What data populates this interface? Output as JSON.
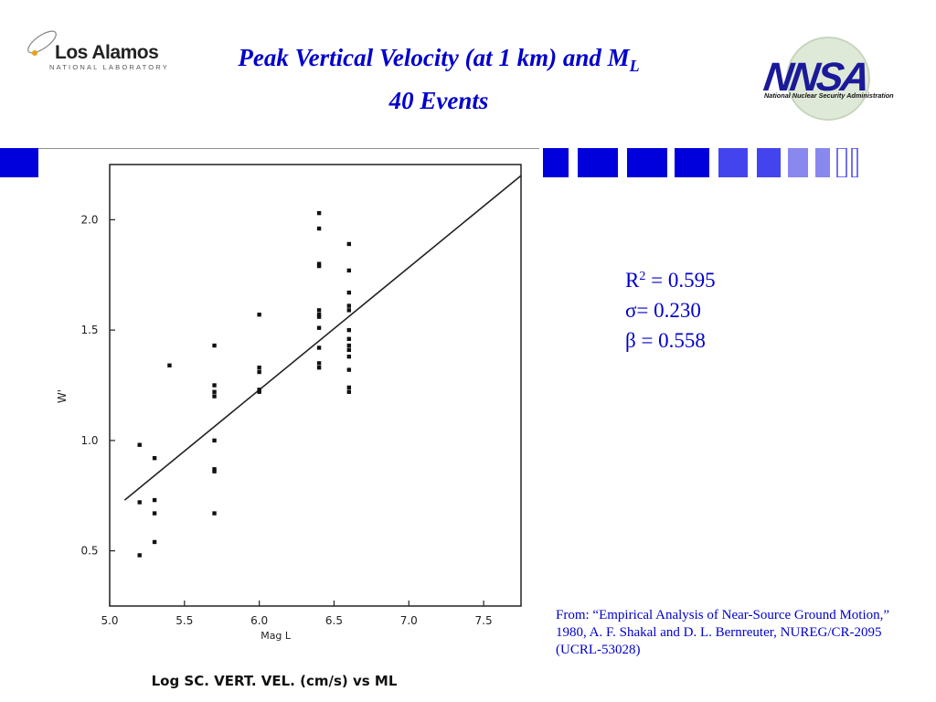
{
  "slide": {
    "title_main": "Peak Vertical Velocity (at 1 km) and M",
    "title_sub": "L",
    "title_line2": "40 Events"
  },
  "logos": {
    "lanl_name": "Los Alamos",
    "lanl_sub": "NATIONAL LABORATORY",
    "nnsa_letters": "NNSA",
    "nnsa_text": "National Nuclear Security Administration"
  },
  "stats": {
    "r2_label": "R",
    "r2_sup": "2",
    "r2_value": " = 0.595",
    "sigma": "σ= 0.230",
    "beta": "β = 0.558"
  },
  "citation": "From:  “Empirical Analysis of Near-Source Ground Motion,” 1980, A. F. Shakal and D. L. Bernreuter, NUREG/CR-2095 (UCRL-53028)",
  "colors": {
    "accent": "#0000cc",
    "stripe_dark": "#0000dd",
    "stripe_mid": "#4444ee",
    "stripe_light": "#8888ee"
  },
  "chart_data": {
    "type": "scatter",
    "title": "Log SC. VERT. VEL. (cm/s) vs ML",
    "xlabel": "Mag L",
    "ylabel": "W'",
    "xlim": [
      5.0,
      7.75
    ],
    "ylim": [
      0.25,
      2.25
    ],
    "x_ticks": [
      "5.0",
      "5.5",
      "6.0",
      "6.5",
      "7.0",
      "7.5"
    ],
    "y_ticks": [
      "0.5",
      "1.0",
      "1.5",
      "2.0"
    ],
    "grid": false,
    "regression_line": {
      "x": [
        5.1,
        7.75
      ],
      "y": [
        0.73,
        2.2
      ]
    },
    "points": [
      {
        "x": 5.2,
        "y": 0.98
      },
      {
        "x": 5.2,
        "y": 0.72
      },
      {
        "x": 5.2,
        "y": 0.48
      },
      {
        "x": 5.3,
        "y": 0.92
      },
      {
        "x": 5.3,
        "y": 0.73
      },
      {
        "x": 5.3,
        "y": 0.67
      },
      {
        "x": 5.3,
        "y": 0.54
      },
      {
        "x": 5.4,
        "y": 1.34
      },
      {
        "x": 5.7,
        "y": 1.43
      },
      {
        "x": 5.7,
        "y": 1.25
      },
      {
        "x": 5.7,
        "y": 1.22
      },
      {
        "x": 5.7,
        "y": 1.2
      },
      {
        "x": 5.7,
        "y": 1.0
      },
      {
        "x": 5.7,
        "y": 0.87
      },
      {
        "x": 5.7,
        "y": 0.86
      },
      {
        "x": 5.7,
        "y": 0.67
      },
      {
        "x": 6.0,
        "y": 1.57
      },
      {
        "x": 6.0,
        "y": 1.33
      },
      {
        "x": 6.0,
        "y": 1.31
      },
      {
        "x": 6.0,
        "y": 1.23
      },
      {
        "x": 6.0,
        "y": 1.22
      },
      {
        "x": 6.4,
        "y": 2.03
      },
      {
        "x": 6.4,
        "y": 1.96
      },
      {
        "x": 6.4,
        "y": 1.8
      },
      {
        "x": 6.4,
        "y": 1.79
      },
      {
        "x": 6.4,
        "y": 1.59
      },
      {
        "x": 6.4,
        "y": 1.57
      },
      {
        "x": 6.4,
        "y": 1.56
      },
      {
        "x": 6.4,
        "y": 1.51
      },
      {
        "x": 6.4,
        "y": 1.42
      },
      {
        "x": 6.4,
        "y": 1.35
      },
      {
        "x": 6.4,
        "y": 1.33
      },
      {
        "x": 6.6,
        "y": 1.89
      },
      {
        "x": 6.6,
        "y": 1.77
      },
      {
        "x": 6.6,
        "y": 1.67
      },
      {
        "x": 6.6,
        "y": 1.61
      },
      {
        "x": 6.6,
        "y": 1.59
      },
      {
        "x": 6.6,
        "y": 1.5
      },
      {
        "x": 6.6,
        "y": 1.46
      },
      {
        "x": 6.6,
        "y": 1.43
      },
      {
        "x": 6.6,
        "y": 1.41
      },
      {
        "x": 6.6,
        "y": 1.38
      },
      {
        "x": 6.6,
        "y": 1.32
      },
      {
        "x": 6.6,
        "y": 1.24
      },
      {
        "x": 6.6,
        "y": 1.22
      }
    ]
  }
}
